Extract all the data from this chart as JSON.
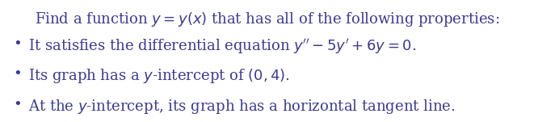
{
  "title": "Find a function $y = y(x)$ that has all of the following properties:",
  "bullets": [
    "It satisfies the differential equation $y'' - 5y' + 6y = 0$.",
    "Its graph has a $y$-intercept of $(0, 4)$.",
    "At the $y$-intercept, its graph has a horizontal tangent line."
  ],
  "title_fontsize": 13.0,
  "bullet_fontsize": 13.0,
  "text_color": "#3B3B8C",
  "background_color": "#ffffff",
  "bullet_char": "•",
  "fig_width": 6.61,
  "fig_height": 1.51,
  "dpi": 100
}
